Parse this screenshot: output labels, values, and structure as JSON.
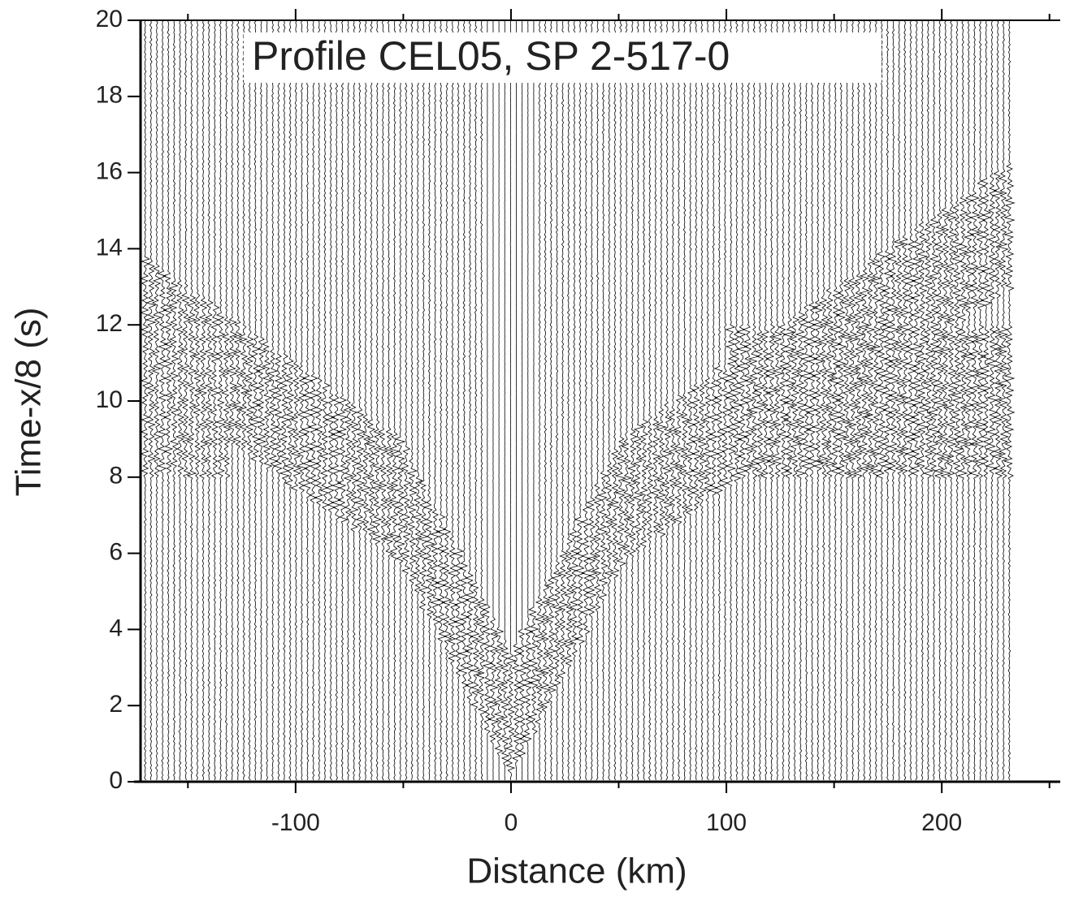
{
  "chart_data": {
    "type": "seismic",
    "title": "Profile CEL05, SP 2-517-0",
    "x_label": "Distance (km)",
    "y_label": "Time-x/8 (s)",
    "xlim": [
      -175,
      255
    ],
    "ylim": [
      0,
      20
    ],
    "xticks": [
      -100,
      0,
      100,
      200
    ],
    "xminorticks": [
      -150,
      -50,
      50,
      150,
      250
    ],
    "yticks": [
      0,
      2,
      4,
      6,
      8,
      10,
      12,
      14,
      16,
      18,
      20
    ],
    "color": "#000000"
  }
}
